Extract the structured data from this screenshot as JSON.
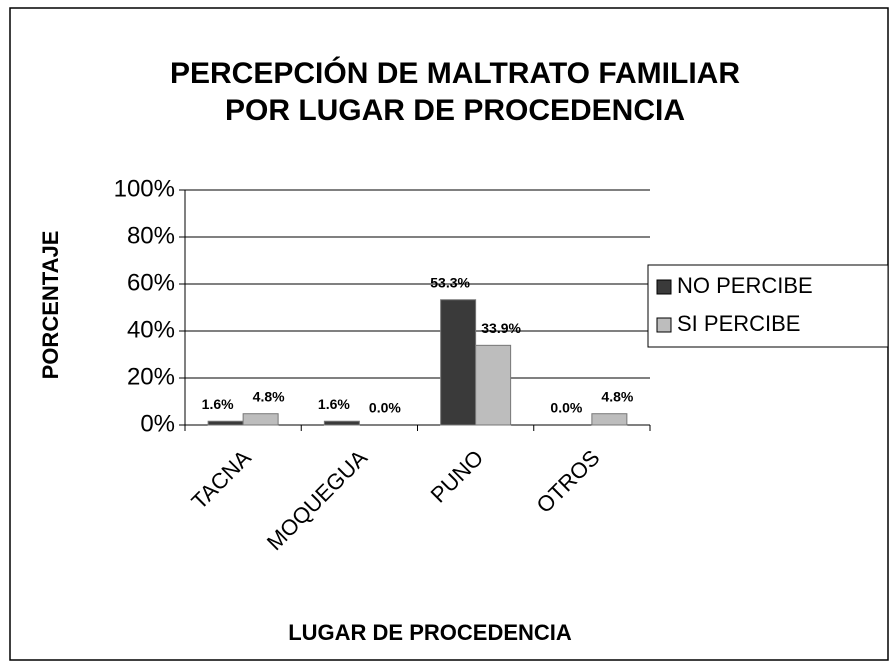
{
  "chart_data": {
    "type": "bar",
    "title": [
      "PERCEPCIÓN DE MALTRATO FAMILIAR",
      "POR LUGAR DE PROCEDENCIA"
    ],
    "x_label": "LUGAR DE PROCEDENCIA",
    "y_label": "PORCENTAJE",
    "categories": [
      "TACNA",
      "MOQUEGUA",
      "PUNO",
      "OTROS"
    ],
    "series": [
      {
        "name": "NO PERCIBE",
        "color": "#3a3a3a",
        "values": [
          1.6,
          1.6,
          53.3,
          0.0
        ],
        "value_labels": [
          "1.6%",
          "1.6%",
          "53.3%",
          "0.0%"
        ]
      },
      {
        "name": "SI PERCIBE",
        "color": "#bdbdbd",
        "values": [
          4.8,
          0.0,
          33.9,
          4.8
        ],
        "value_labels": [
          "4.8%",
          "0.0%",
          "33.9%",
          "4.8%"
        ]
      }
    ],
    "ylim": [
      0,
      100
    ],
    "yticks": [
      {
        "value": 0,
        "label": "0%"
      },
      {
        "value": 20,
        "label": "20%"
      },
      {
        "value": 40,
        "label": "40%"
      },
      {
        "value": 60,
        "label": "60%"
      },
      {
        "value": 80,
        "label": "80%"
      },
      {
        "value": 100,
        "label": "100%"
      }
    ],
    "grid": true,
    "legend": "right"
  }
}
